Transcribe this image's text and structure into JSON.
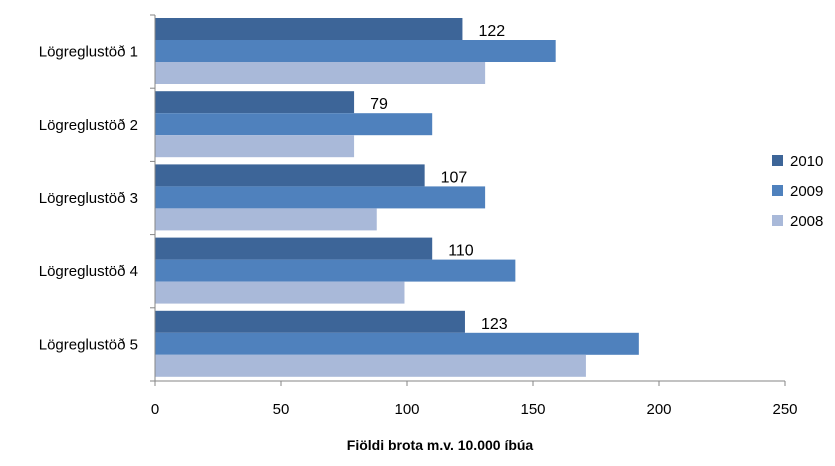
{
  "chart_data": {
    "type": "bar",
    "orientation": "horizontal",
    "categories": [
      "Lögreglustöð 1",
      "Lögreglustöð 2",
      "Lögreglustöð 3",
      "Lögreglustöð 4",
      "Lögreglustöð 5"
    ],
    "series": [
      {
        "name": "2010",
        "color": "#3d6598",
        "values": [
          122,
          79,
          107,
          110,
          123
        ]
      },
      {
        "name": "2009",
        "color": "#4f81bd",
        "values": [
          159,
          110,
          131,
          143,
          192
        ]
      },
      {
        "name": "2008",
        "color": "#a9b9d9",
        "values": [
          131,
          79,
          88,
          99,
          171
        ]
      }
    ],
    "data_labels": {
      "series": "2010",
      "values": [
        "122",
        "79",
        "107",
        "110",
        "123"
      ]
    },
    "xlim": [
      0,
      250
    ],
    "xticks": [
      "0",
      "50",
      "100",
      "150",
      "200",
      "250"
    ],
    "xlabel": "Fiöldi brota m.v. 10.000 íbúa",
    "ylabel": "",
    "grid": false,
    "legend": "right"
  }
}
